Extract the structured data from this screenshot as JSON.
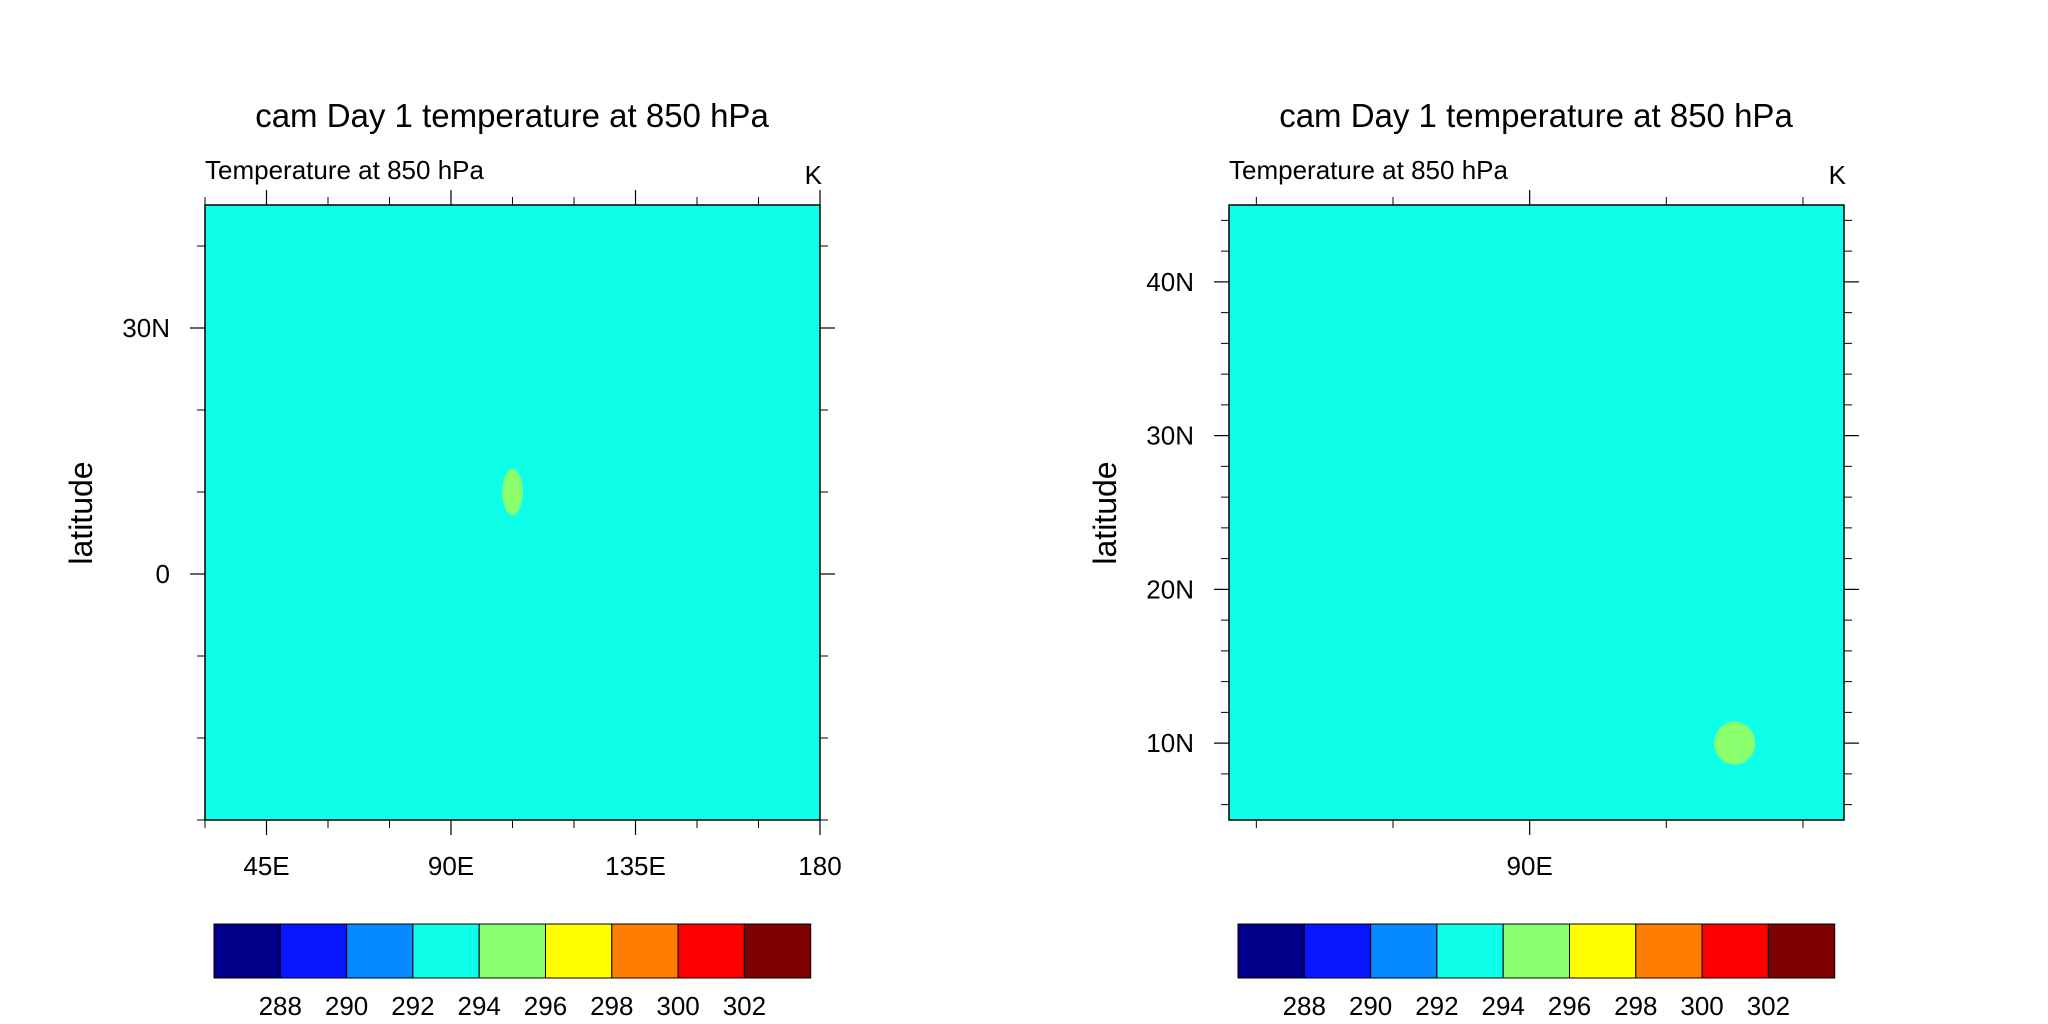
{
  "chart_data": [
    {
      "type": "heatmap",
      "title": "cam Day 1 temperature at 850 hPa",
      "left_string": "Temperature at 850 hPa",
      "right_string": "K",
      "ylabel": "latitude",
      "xlabel": "",
      "xlim": [
        30,
        180
      ],
      "ylim": [
        -30,
        45
      ],
      "x_ticks": [
        {
          "value": 45,
          "label": "45E"
        },
        {
          "value": 90,
          "label": "90E"
        },
        {
          "value": 135,
          "label": "135E"
        },
        {
          "value": 180,
          "label": "180"
        }
      ],
      "x_minor_step": 15,
      "y_ticks": [
        {
          "value": 0,
          "label": "0"
        },
        {
          "value": 30,
          "label": "30N"
        }
      ],
      "y_minor_step": 10,
      "background_level": "292-294",
      "background_color": "#0DFFE8",
      "features": [
        {
          "lon": 105,
          "lat": 10,
          "dlon": 2.5,
          "dlat": 2.8,
          "level": "294-296",
          "color": "#8CFF6E"
        }
      ],
      "colorbar": {
        "colors": [
          "#02008A",
          "#0717FF",
          "#0689FF",
          "#0DFFE8",
          "#8CFF6E",
          "#FFFF00",
          "#FF7E00",
          "#FF0000",
          "#800000"
        ],
        "labels": [
          "288",
          "290",
          "292",
          "294",
          "296",
          "298",
          "300",
          "302"
        ]
      }
    },
    {
      "type": "heatmap",
      "title": "cam Day 1 temperature at 850 hPa",
      "left_string": "Temperature at 850 hPa",
      "right_string": "K",
      "ylabel": "latitude",
      "xlabel": "",
      "xlim": [
        68,
        113
      ],
      "ylim": [
        5,
        45
      ],
      "x_ticks": [
        {
          "value": 90,
          "label": "90E"
        }
      ],
      "x_minor_step": 10,
      "y_ticks": [
        {
          "value": 10,
          "label": "10N"
        },
        {
          "value": 20,
          "label": "20N"
        },
        {
          "value": 30,
          "label": "30N"
        },
        {
          "value": 40,
          "label": "40N"
        }
      ],
      "y_minor_step": 2,
      "background_level": "292-294",
      "background_color": "#0DFFE8",
      "features": [
        {
          "lon": 105,
          "lat": 10,
          "dlon": 1.5,
          "dlat": 1.4,
          "level": "294-296",
          "color": "#8CFF6E"
        }
      ],
      "colorbar": {
        "colors": [
          "#02008A",
          "#0717FF",
          "#0689FF",
          "#0DFFE8",
          "#8CFF6E",
          "#FFFF00",
          "#FF7E00",
          "#FF0000",
          "#800000"
        ],
        "labels": [
          "288",
          "290",
          "292",
          "294",
          "296",
          "298",
          "300",
          "302"
        ]
      }
    }
  ]
}
